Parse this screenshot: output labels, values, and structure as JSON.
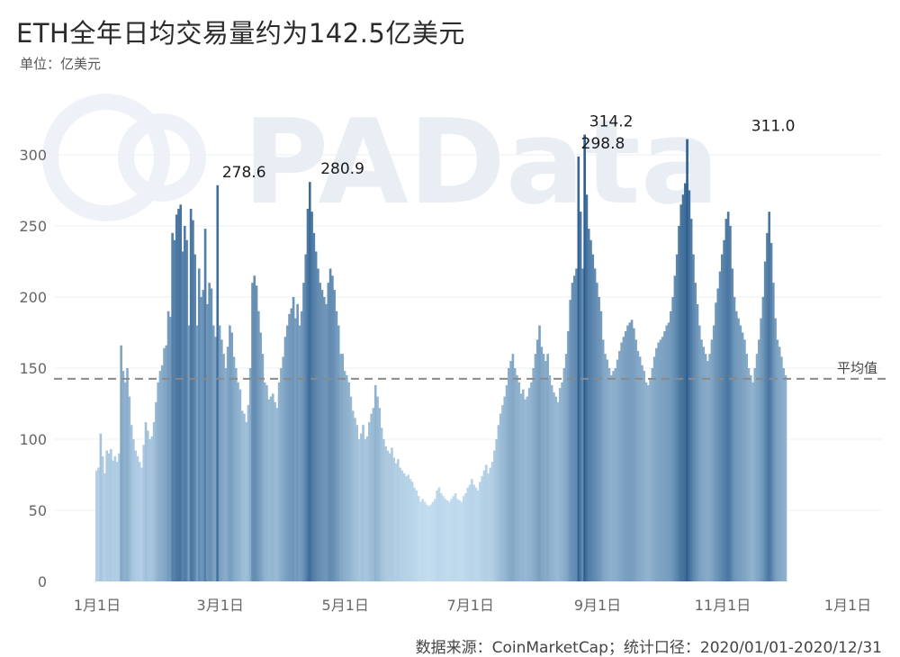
{
  "chart_data": {
    "type": "bar",
    "title": "ETH全年日均交易量约为142.5亿美元",
    "unit_label": "单位：亿美元",
    "source": "数据来源：CoinMarketCap；统计口径：2020/01/01-2020/12/31",
    "watermark": "PAData",
    "x_start": "2020-01-01",
    "x_end": "2020-12-31",
    "x_ticks": [
      {
        "date": "2020-01-01",
        "label": "1月1日"
      },
      {
        "date": "2020-03-01",
        "label": "3月1日"
      },
      {
        "date": "2020-05-01",
        "label": "5月1日"
      },
      {
        "date": "2020-07-01",
        "label": "7月1日"
      },
      {
        "date": "2020-09-01",
        "label": "9月1日"
      },
      {
        "date": "2020-11-01",
        "label": "11月1日"
      },
      {
        "date": "2021-01-01",
        "label": "1月1日"
      }
    ],
    "y_ticks": [
      0,
      50,
      100,
      150,
      200,
      250,
      300
    ],
    "ylim": [
      0,
      330
    ],
    "average": {
      "value": 142.5,
      "label": "平均值"
    },
    "annotations": [
      {
        "date": "2020-03-13",
        "value": 278.6,
        "label": "278.6"
      },
      {
        "date": "2020-04-30",
        "value": 280.9,
        "label": "280.9"
      },
      {
        "date": "2020-09-04",
        "value": 298.8,
        "label": "298.8"
      },
      {
        "date": "2020-09-08",
        "value": 314.2,
        "label": "314.2"
      },
      {
        "date": "2020-11-26",
        "value": 311.0,
        "label": "311.0"
      }
    ],
    "color_scale": {
      "low": "#c4def0",
      "high": "#2e5f8f",
      "min": 50,
      "max": 310
    },
    "values": [
      78,
      80,
      104,
      88,
      76,
      92,
      90,
      93,
      85,
      88,
      84,
      90,
      166,
      148,
      140,
      150,
      130,
      110,
      100,
      92,
      88,
      84,
      80,
      96,
      112,
      106,
      100,
      102,
      112,
      126,
      140,
      148,
      152,
      164,
      166,
      190,
      186,
      245,
      240,
      258,
      262,
      265,
      232,
      250,
      240,
      180,
      262,
      254,
      230,
      180,
      220,
      200,
      205,
      248,
      195,
      210,
      206,
      180,
      172,
      278.6,
      180,
      170,
      160,
      150,
      165,
      180,
      175,
      158,
      150,
      140,
      135,
      120,
      118,
      112,
      124,
      150,
      210,
      215,
      208,
      190,
      175,
      160,
      140,
      138,
      128,
      130,
      132,
      126,
      122,
      140,
      150,
      158,
      172,
      180,
      188,
      192,
      200,
      185,
      195,
      180,
      190,
      210,
      230,
      262,
      280.9,
      260,
      245,
      232,
      220,
      210,
      205,
      200,
      195,
      210,
      220,
      215,
      205,
      190,
      180,
      160,
      160,
      148,
      145,
      140,
      130,
      120,
      115,
      110,
      100,
      104,
      110,
      100,
      102,
      112,
      118,
      122,
      138,
      130,
      122,
      108,
      100,
      95,
      92,
      90,
      94,
      87,
      83,
      86,
      80,
      78,
      76,
      74,
      75,
      72,
      70,
      66,
      64,
      60,
      56,
      58,
      56,
      54,
      53,
      54,
      56,
      58,
      64,
      66,
      62,
      60,
      58,
      57,
      56,
      58,
      60,
      62,
      58,
      57,
      56,
      60,
      62,
      66,
      68,
      72,
      68,
      66,
      64,
      70,
      74,
      78,
      82,
      76,
      80,
      84,
      92,
      100,
      110,
      118,
      124,
      130,
      138,
      150,
      155,
      160,
      150,
      145,
      140,
      132,
      135,
      128,
      130,
      136,
      140,
      150,
      160,
      170,
      180,
      165,
      160,
      155,
      160,
      145,
      138,
      133,
      130,
      126,
      136,
      140,
      150,
      160,
      176,
      198,
      210,
      215,
      220,
      298.8,
      260,
      220,
      314.2,
      272,
      248,
      240,
      230,
      220,
      210,
      200,
      190,
      170,
      160,
      156,
      150,
      145,
      148,
      150,
      156,
      162,
      168,
      172,
      176,
      180,
      182,
      184,
      178,
      170,
      162,
      158,
      152,
      148,
      140,
      138,
      142,
      150,
      158,
      164,
      168,
      170,
      172,
      176,
      180,
      182,
      190,
      200,
      215,
      230,
      250,
      265,
      272,
      280,
      311.0,
      275,
      255,
      230,
      210,
      195,
      180,
      170,
      165,
      160,
      155,
      160,
      170,
      180,
      196,
      206,
      218,
      230,
      240,
      255,
      260,
      250,
      220,
      200,
      190,
      185,
      180,
      175,
      170,
      160,
      150,
      145,
      140,
      150,
      160,
      170,
      185,
      200,
      225,
      245,
      260,
      238,
      210,
      185,
      170,
      165,
      158,
      150,
      145
    ]
  }
}
